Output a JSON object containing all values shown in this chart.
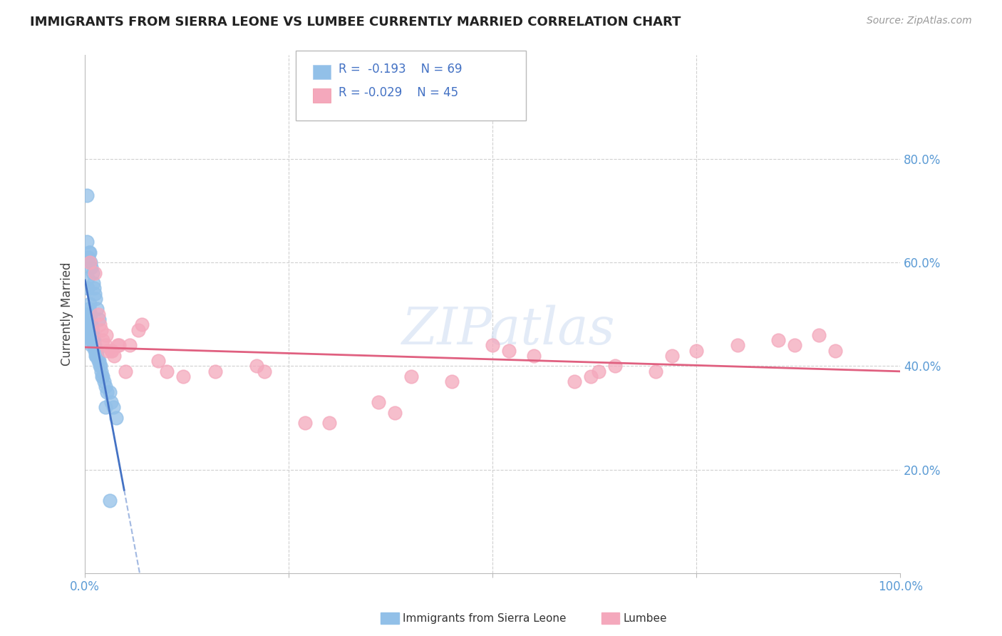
{
  "title": "IMMIGRANTS FROM SIERRA LEONE VS LUMBEE CURRENTLY MARRIED CORRELATION CHART",
  "source": "Source: ZipAtlas.com",
  "ylabel": "Currently Married",
  "watermark": "ZIPatlas",
  "legend_r_blue": "-0.193",
  "legend_n_blue": "69",
  "legend_r_pink": "-0.029",
  "legend_n_pink": "45",
  "legend_label_blue": "Immigrants from Sierra Leone",
  "legend_label_pink": "Lumbee",
  "blue_color": "#92C0E8",
  "pink_color": "#F4A8BC",
  "trend_blue_color": "#4472C4",
  "trend_pink_color": "#E06080",
  "xlim": [
    0.0,
    1.0
  ],
  "ylim": [
    0.0,
    1.0
  ],
  "ytick_positions": [
    0.2,
    0.4,
    0.6,
    0.8
  ],
  "ytick_labels": [
    "20.0%",
    "40.0%",
    "60.0%",
    "80.0%"
  ],
  "grid_color": "#D0D0D0",
  "background_color": "#FFFFFF",
  "blue_x": [
    0.002,
    0.003,
    0.003,
    0.003,
    0.004,
    0.004,
    0.004,
    0.005,
    0.005,
    0.005,
    0.005,
    0.005,
    0.006,
    0.006,
    0.006,
    0.006,
    0.007,
    0.007,
    0.007,
    0.007,
    0.008,
    0.008,
    0.008,
    0.008,
    0.009,
    0.009,
    0.009,
    0.01,
    0.01,
    0.01,
    0.011,
    0.011,
    0.012,
    0.012,
    0.013,
    0.013,
    0.014,
    0.015,
    0.015,
    0.016,
    0.017,
    0.018,
    0.019,
    0.02,
    0.021,
    0.022,
    0.023,
    0.025,
    0.027,
    0.03,
    0.032,
    0.035,
    0.038,
    0.004,
    0.005,
    0.006,
    0.007,
    0.008,
    0.009,
    0.01,
    0.011,
    0.012,
    0.013,
    0.015,
    0.017,
    0.002,
    0.003,
    0.025,
    0.03
  ],
  "blue_y": [
    0.73,
    0.55,
    0.5,
    0.48,
    0.5,
    0.49,
    0.47,
    0.51,
    0.49,
    0.48,
    0.47,
    0.46,
    0.52,
    0.5,
    0.48,
    0.47,
    0.5,
    0.48,
    0.47,
    0.46,
    0.48,
    0.46,
    0.45,
    0.44,
    0.47,
    0.46,
    0.45,
    0.46,
    0.45,
    0.44,
    0.45,
    0.44,
    0.44,
    0.43,
    0.43,
    0.42,
    0.42,
    0.43,
    0.42,
    0.41,
    0.41,
    0.4,
    0.4,
    0.39,
    0.38,
    0.38,
    0.37,
    0.36,
    0.35,
    0.35,
    0.33,
    0.32,
    0.3,
    0.61,
    0.62,
    0.62,
    0.6,
    0.59,
    0.58,
    0.56,
    0.55,
    0.54,
    0.53,
    0.51,
    0.49,
    0.64,
    0.57,
    0.32,
    0.14
  ],
  "pink_x": [
    0.006,
    0.012,
    0.016,
    0.018,
    0.02,
    0.022,
    0.025,
    0.026,
    0.028,
    0.032,
    0.033,
    0.036,
    0.04,
    0.042,
    0.05,
    0.055,
    0.065,
    0.07,
    0.09,
    0.1,
    0.12,
    0.16,
    0.21,
    0.22,
    0.27,
    0.3,
    0.36,
    0.38,
    0.4,
    0.45,
    0.5,
    0.52,
    0.55,
    0.6,
    0.62,
    0.63,
    0.65,
    0.7,
    0.72,
    0.75,
    0.8,
    0.85,
    0.87,
    0.9,
    0.92
  ],
  "pink_y": [
    0.6,
    0.58,
    0.5,
    0.48,
    0.47,
    0.45,
    0.44,
    0.46,
    0.43,
    0.43,
    0.43,
    0.42,
    0.44,
    0.44,
    0.39,
    0.44,
    0.47,
    0.48,
    0.41,
    0.39,
    0.38,
    0.39,
    0.4,
    0.39,
    0.29,
    0.29,
    0.33,
    0.31,
    0.38,
    0.37,
    0.44,
    0.43,
    0.42,
    0.37,
    0.38,
    0.39,
    0.4,
    0.39,
    0.42,
    0.43,
    0.44,
    0.45,
    0.44,
    0.46,
    0.43
  ]
}
